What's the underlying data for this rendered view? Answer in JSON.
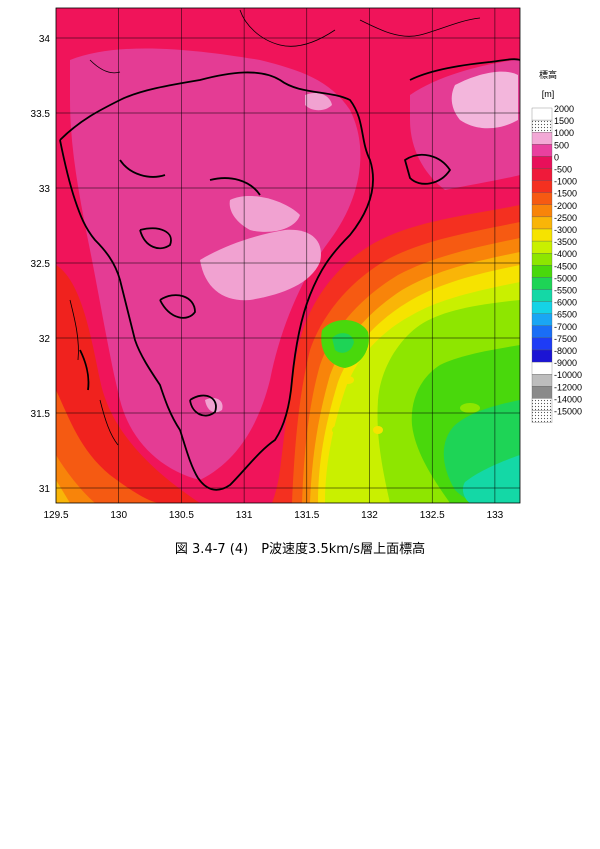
{
  "figure": {
    "caption": "図 3.4-7 (4)　P波速度3.5km/s層上面標高"
  },
  "map": {
    "lon_range": [
      129.5,
      133.2
    ],
    "lat_range": [
      30.9,
      34.2
    ],
    "x_ticks": [
      "129.5",
      "130",
      "130.5",
      "131",
      "131.5",
      "132",
      "132.5",
      "133"
    ],
    "y_ticks": [
      "34",
      "33.5",
      "33",
      "32.5",
      "32",
      "31.5",
      "31"
    ],
    "grid": true
  },
  "legend": {
    "title": "標高",
    "unit": "[m]",
    "items": [
      {
        "label": "2000",
        "color": "#ffffff"
      },
      {
        "label": "1500",
        "color": "#fbe3f1"
      },
      {
        "label": "1000",
        "color": "#f3a9d6"
      },
      {
        "label": "500",
        "color": "#e9409f"
      },
      {
        "label": "0",
        "color": "#e8105a"
      },
      {
        "label": "-500",
        "color": "#ef1a3a"
      },
      {
        "label": "-1000",
        "color": "#f43020"
      },
      {
        "label": "-1500",
        "color": "#f65a12"
      },
      {
        "label": "-2000",
        "color": "#f8840a"
      },
      {
        "label": "-2500",
        "color": "#f9b508"
      },
      {
        "label": "-3000",
        "color": "#f6e300"
      },
      {
        "label": "-3500",
        "color": "#c9f000"
      },
      {
        "label": "-4000",
        "color": "#8ee600"
      },
      {
        "label": "-4500",
        "color": "#49d80c"
      },
      {
        "label": "-5000",
        "color": "#1ed456"
      },
      {
        "label": "-5500",
        "color": "#14d8a6"
      },
      {
        "label": "-6000",
        "color": "#15d3e6"
      },
      {
        "label": "-6500",
        "color": "#1aa6f4"
      },
      {
        "label": "-7000",
        "color": "#1a6ef6"
      },
      {
        "label": "-7500",
        "color": "#1e3cf6"
      },
      {
        "label": "-8000",
        "color": "#1b14d4"
      },
      {
        "label": "-9000",
        "color": "#ffffff"
      },
      {
        "label": "-10000",
        "color": "#bdbdbd"
      },
      {
        "label": "-12000",
        "color": "#8a8a8a"
      },
      {
        "label": "-14000",
        "color": "#d8d8d8"
      },
      {
        "label": "-15000",
        "color": "#ffffff"
      }
    ]
  }
}
